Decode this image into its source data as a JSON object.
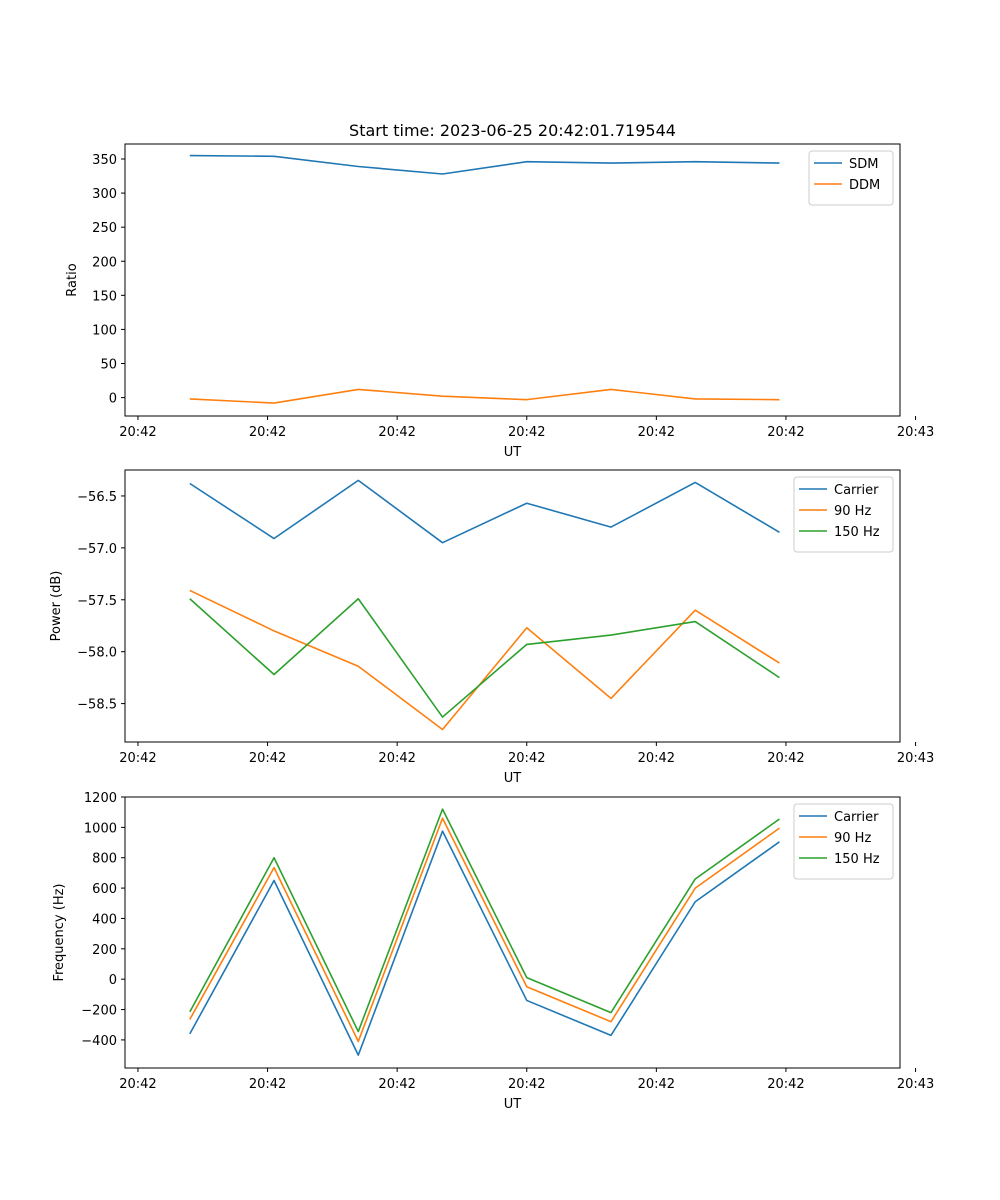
{
  "title": "Start time: 2023-06-25 20:42:01.719544",
  "chart_data": [
    {
      "type": "line",
      "xlabel": "UT",
      "ylabel": "Ratio",
      "x": [
        0.3,
        0.95,
        1.6,
        2.25,
        2.9,
        3.55,
        4.2,
        4.85
      ],
      "xlim": [
        -0.2,
        5.78
      ],
      "xticks": [
        -0.1,
        0.9,
        1.9,
        2.9,
        3.9,
        4.9,
        5.9
      ],
      "xticklabels": [
        "20:42",
        "20:42",
        "20:42",
        "20:42",
        "20:42",
        "20:42",
        "20:43"
      ],
      "ylim": [
        -27,
        372
      ],
      "yticks": [
        0,
        50,
        100,
        150,
        200,
        250,
        300,
        350
      ],
      "yticklabels": [
        "0",
        "50",
        "100",
        "150",
        "200",
        "250",
        "300",
        "350"
      ],
      "legend_position": "top-right",
      "grid": false,
      "series": [
        {
          "name": "SDM",
          "color": "#1f77b4",
          "values": [
            355,
            354,
            339,
            328,
            346,
            344,
            346,
            344
          ]
        },
        {
          "name": "DDM",
          "color": "#ff7f0e",
          "values": [
            -2,
            -8,
            12,
            2,
            -3,
            12,
            -2,
            -3
          ]
        }
      ]
    },
    {
      "type": "line",
      "xlabel": "UT",
      "ylabel": "Power (dB)",
      "x": [
        0.3,
        0.95,
        1.6,
        2.25,
        2.9,
        3.55,
        4.2,
        4.85
      ],
      "xlim": [
        -0.2,
        5.78
      ],
      "xticks": [
        -0.1,
        0.9,
        1.9,
        2.9,
        3.9,
        4.9,
        5.9
      ],
      "xticklabels": [
        "20:42",
        "20:42",
        "20:42",
        "20:42",
        "20:42",
        "20:42",
        "20:43"
      ],
      "ylim": [
        -58.87,
        -56.25
      ],
      "yticks": [
        -58.5,
        -58.0,
        -57.5,
        -57.0,
        -56.5
      ],
      "yticklabels": [
        "−58.5",
        "−58.0",
        "−57.5",
        "−57.0",
        "−56.5"
      ],
      "legend_position": "top-right",
      "grid": false,
      "series": [
        {
          "name": "Carrier",
          "color": "#1f77b4",
          "values": [
            -56.38,
            -56.91,
            -56.35,
            -56.95,
            -56.57,
            -56.8,
            -56.37,
            -56.85
          ]
        },
        {
          "name": "90 Hz",
          "color": "#ff7f0e",
          "values": [
            -57.41,
            -57.8,
            -58.14,
            -58.75,
            -57.77,
            -58.45,
            -57.6,
            -58.11
          ]
        },
        {
          "name": "150 Hz",
          "color": "#2ca02c",
          "values": [
            -57.49,
            -58.22,
            -57.49,
            -58.63,
            -57.93,
            -57.84,
            -57.71,
            -58.25
          ]
        }
      ]
    },
    {
      "type": "line",
      "xlabel": "UT",
      "ylabel": "Frequency (Hz)",
      "x": [
        0.3,
        0.95,
        1.6,
        2.25,
        2.9,
        3.55,
        4.2,
        4.85
      ],
      "xlim": [
        -0.2,
        5.78
      ],
      "xticks": [
        -0.1,
        0.9,
        1.9,
        2.9,
        3.9,
        4.9,
        5.9
      ],
      "xticklabels": [
        "20:42",
        "20:42",
        "20:42",
        "20:42",
        "20:42",
        "20:42",
        "20:43"
      ],
      "ylim": [
        -585,
        1200
      ],
      "yticks": [
        -400,
        -200,
        0,
        200,
        400,
        600,
        800,
        1000,
        1200
      ],
      "yticklabels": [
        "−400",
        "−200",
        "0",
        "200",
        "400",
        "600",
        "800",
        "1000",
        "1200"
      ],
      "legend_position": "top-right",
      "grid": false,
      "series": [
        {
          "name": "Carrier",
          "color": "#1f77b4",
          "values": [
            -360,
            650,
            -500,
            975,
            -140,
            -370,
            510,
            905
          ]
        },
        {
          "name": "90 Hz",
          "color": "#ff7f0e",
          "values": [
            -265,
            735,
            -410,
            1060,
            -50,
            -280,
            600,
            995
          ]
        },
        {
          "name": "150 Hz",
          "color": "#2ca02c",
          "values": [
            -215,
            800,
            -345,
            1120,
            10,
            -220,
            660,
            1055
          ]
        }
      ]
    }
  ]
}
